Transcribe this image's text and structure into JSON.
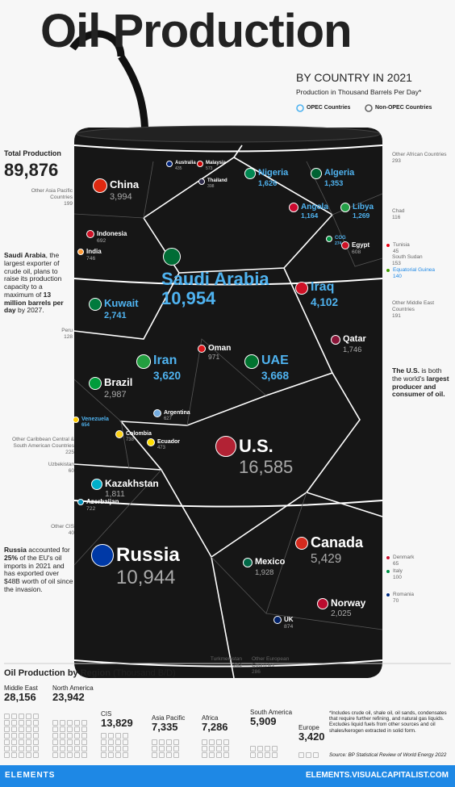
{
  "header": {
    "title": "Oil Production",
    "subtitle": "BY COUNTRY IN 2021",
    "note": "Production in Thousand Barrels Per Day*",
    "legend": [
      "OPEC Countries",
      "Non-OPEC Countries"
    ]
  },
  "total": {
    "label": "Total Production",
    "value": "89,876"
  },
  "countries": [
    {
      "name": "China",
      "value": "3,994",
      "opec": false
    },
    {
      "name": "Australia",
      "value": "435",
      "opec": false
    },
    {
      "name": "Malaysia",
      "value": "573",
      "opec": false
    },
    {
      "name": "Thailand",
      "value": "398",
      "opec": false
    },
    {
      "name": "Nigeria",
      "value": "1,626",
      "opec": true
    },
    {
      "name": "Algeria",
      "value": "1,353",
      "opec": true
    },
    {
      "name": "Other Asia Pacific Countries",
      "value": "199",
      "opec": false
    },
    {
      "name": "Indonesia",
      "value": "692",
      "opec": false
    },
    {
      "name": "India",
      "value": "746",
      "opec": false
    },
    {
      "name": "Angola",
      "value": "1,164",
      "opec": true
    },
    {
      "name": "Libya",
      "value": "1,269",
      "opec": true
    },
    {
      "name": "COG",
      "value": "274",
      "opec": true
    },
    {
      "name": "Egypt",
      "value": "608",
      "opec": false
    },
    {
      "name": "Chad",
      "value": "116",
      "opec": false
    },
    {
      "name": "Tunisia",
      "value": "45",
      "opec": false
    },
    {
      "name": "South Sudan",
      "value": "153",
      "opec": false
    },
    {
      "name": "Equatorial Guinea",
      "value": "140",
      "opec": true
    },
    {
      "name": "Other African Countries",
      "value": "293",
      "opec": false
    },
    {
      "name": "Saudi Arabia",
      "value": "10,954",
      "opec": true
    },
    {
      "name": "Iraq",
      "value": "4,102",
      "opec": true
    },
    {
      "name": "Kuwait",
      "value": "2,741",
      "opec": true
    },
    {
      "name": "Other Middle East Countries",
      "value": "191",
      "opec": false
    },
    {
      "name": "Peru",
      "value": "128",
      "opec": false
    },
    {
      "name": "Oman",
      "value": "971",
      "opec": false
    },
    {
      "name": "Qatar",
      "value": "1,746",
      "opec": false
    },
    {
      "name": "Iran",
      "value": "3,620",
      "opec": true
    },
    {
      "name": "UAE",
      "value": "3,668",
      "opec": true
    },
    {
      "name": "Brazil",
      "value": "2,987",
      "opec": false
    },
    {
      "name": "Argentina",
      "value": "627",
      "opec": false
    },
    {
      "name": "Venezuela",
      "value": "654",
      "opec": true
    },
    {
      "name": "Colombia",
      "value": "738",
      "opec": false
    },
    {
      "name": "Ecuador",
      "value": "473",
      "opec": false
    },
    {
      "name": "Other Caribbean Central & South American Countries",
      "value": "225",
      "opec": false
    },
    {
      "name": "Uzbekistan",
      "value": "60",
      "opec": false
    },
    {
      "name": "U.S.",
      "value": "16,585",
      "opec": false
    },
    {
      "name": "Kazakhstan",
      "value": "1,811",
      "opec": false
    },
    {
      "name": "Azerbaijan",
      "value": "722",
      "opec": false
    },
    {
      "name": "Other CIS",
      "value": "40",
      "opec": false
    },
    {
      "name": "Russia",
      "value": "10,944",
      "opec": false
    },
    {
      "name": "Canada",
      "value": "5,429",
      "opec": false
    },
    {
      "name": "Mexico",
      "value": "1,928",
      "opec": false
    },
    {
      "name": "Norway",
      "value": "2,025",
      "opec": false
    },
    {
      "name": "UK",
      "value": "874",
      "opec": false
    },
    {
      "name": "Denmark",
      "value": "65",
      "opec": false
    },
    {
      "name": "Italy",
      "value": "100",
      "opec": false
    },
    {
      "name": "Romania",
      "value": "70",
      "opec": false
    },
    {
      "name": "Turkmenistan",
      "value": "252",
      "opec": false
    },
    {
      "name": "Other European Countries",
      "value": "286",
      "opec": false
    }
  ],
  "annotations": {
    "saudi": [
      "Saudi Arabia",
      ", the largest exporter of crude oil, plans to raise its production capacity to a maximum of ",
      "13 million barrels per day",
      " by 2027."
    ],
    "us": [
      "The U.S.",
      " is both the world's ",
      "largest producer and consumer of oil."
    ],
    "russia": [
      "Russia",
      " accounted for ",
      "25%",
      " of the EU's oil imports in 2021 and has exported over $48B worth of oil since the invasion."
    ]
  },
  "regions": {
    "title": "Oil Production by Region",
    "unit": "(Thousand B/D)",
    "items": [
      {
        "name": "Middle East",
        "value": "28,156"
      },
      {
        "name": "North America",
        "value": "23,942"
      },
      {
        "name": "CIS",
        "value": "13,829"
      },
      {
        "name": "Asia Pacific",
        "value": "7,335"
      },
      {
        "name": "Africa",
        "value": "7,286"
      },
      {
        "name": "South America",
        "value": "5,909"
      },
      {
        "name": "Europe",
        "value": "3,420"
      }
    ]
  },
  "footnote": "*Includes crude oil, shale oil, oil sands, condensates that require further refining, and natural gas liquids. Excludes liquid fuels from other sources and oil shales/kerogen extracted in solid form.",
  "source": "Source: BP Statistical Review of World Energy 2022",
  "footer": {
    "brand": "ELEMENTS",
    "url": "ELEMENTS.VISUALCAPITALIST.COM"
  }
}
